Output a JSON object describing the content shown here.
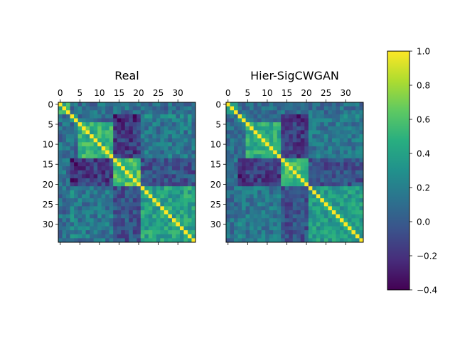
{
  "chart_data": [
    {
      "type": "heatmap",
      "title": "Real",
      "size": 35,
      "xticks": [
        0,
        5,
        10,
        15,
        20,
        25,
        30
      ],
      "yticks": [
        0,
        5,
        10,
        15,
        20,
        25,
        30
      ],
      "xtick_position": "top",
      "colormap": "viridis",
      "vmin": -0.4,
      "vmax": 1.0,
      "blocks": [
        {
          "range": [
            0,
            2
          ],
          "value": 0.45
        },
        {
          "range": [
            3,
            4
          ],
          "value": 0.45
        },
        {
          "range": [
            5,
            13
          ],
          "value": 0.5
        },
        {
          "range": [
            14,
            20
          ],
          "value": 0.6
        },
        {
          "range": [
            21,
            34
          ],
          "value": 0.4
        }
      ],
      "cross_block_values": [
        {
          "a": 1,
          "b": 2,
          "value": 0.1
        },
        {
          "a": 1,
          "b": 3,
          "value": -0.25
        },
        {
          "a": 1,
          "b": 4,
          "value": 0.2
        },
        {
          "a": 2,
          "b": 3,
          "value": -0.15
        },
        {
          "a": 2,
          "b": 4,
          "value": 0.15
        },
        {
          "a": 3,
          "b": 4,
          "value": -0.05
        }
      ],
      "noise_amplitude": 0.18,
      "seed": 7
    },
    {
      "type": "heatmap",
      "title": "Hier-SigCWGAN",
      "size": 35,
      "xticks": [
        0,
        5,
        10,
        15,
        20,
        25,
        30
      ],
      "yticks": [
        0,
        5,
        10,
        15,
        20,
        25,
        30
      ],
      "xtick_position": "top",
      "colormap": "viridis",
      "vmin": -0.4,
      "vmax": 1.0,
      "blocks": [
        {
          "range": [
            0,
            2
          ],
          "value": 0.45
        },
        {
          "range": [
            3,
            4
          ],
          "value": 0.45
        },
        {
          "range": [
            5,
            13
          ],
          "value": 0.45
        },
        {
          "range": [
            14,
            20
          ],
          "value": 0.55
        },
        {
          "range": [
            21,
            34
          ],
          "value": 0.35
        }
      ],
      "cross_block_values": [
        {
          "a": 1,
          "b": 2,
          "value": 0.1
        },
        {
          "a": 1,
          "b": 3,
          "value": -0.25
        },
        {
          "a": 1,
          "b": 4,
          "value": 0.2
        },
        {
          "a": 2,
          "b": 3,
          "value": -0.15
        },
        {
          "a": 2,
          "b": 4,
          "value": 0.15
        },
        {
          "a": 3,
          "b": 4,
          "value": -0.05
        }
      ],
      "noise_amplitude": 0.16,
      "seed": 11
    }
  ],
  "colorbar": {
    "ticks": [
      1.0,
      0.8,
      0.6,
      0.4,
      0.2,
      0.0,
      -0.2,
      -0.4
    ],
    "tick_labels": [
      "1.0",
      "0.8",
      "0.6",
      "0.4",
      "0.2",
      "0.0",
      "−0.2",
      "−0.4"
    ],
    "vmin": -0.4,
    "vmax": 1.0
  }
}
